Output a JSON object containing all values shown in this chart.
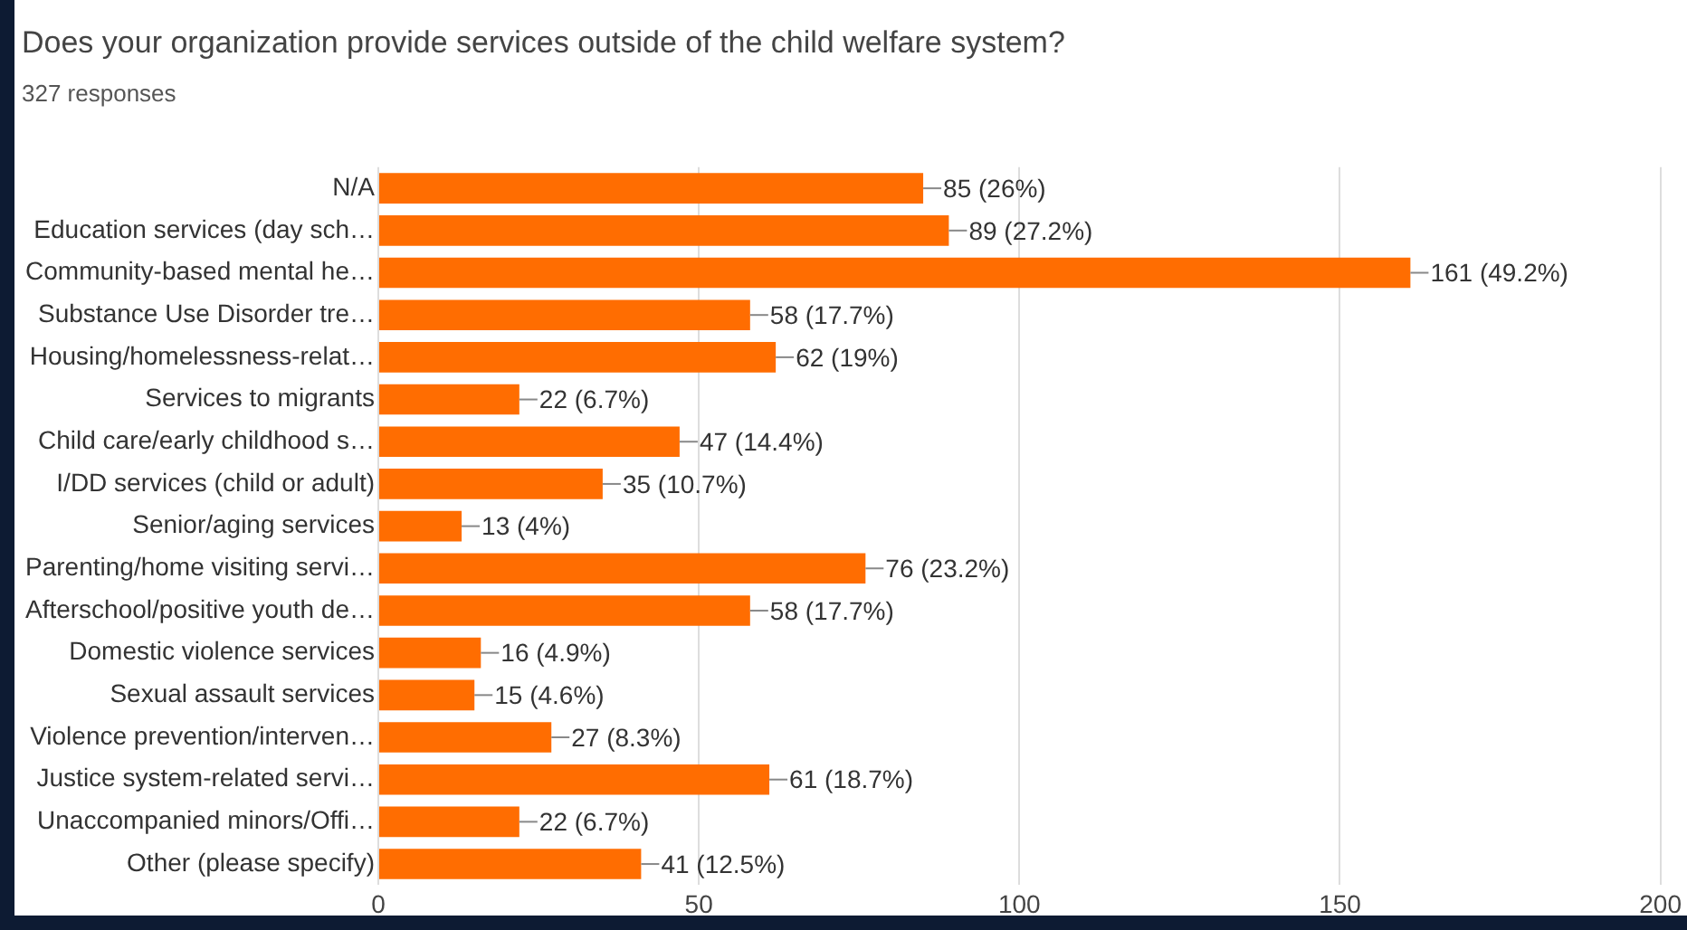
{
  "chart_data": {
    "type": "bar",
    "orientation": "horizontal",
    "title": "Does your organization provide services outside of the child welfare system?",
    "subtitle": "327 responses",
    "categories": [
      "N/A",
      "Education services (day sch…",
      "Community-based mental he…",
      "Substance Use Disorder tre…",
      "Housing/homelessness-relat…",
      "Services to migrants",
      "Child care/early childhood s…",
      "I/DD services (child or adult)",
      "Senior/aging services",
      "Parenting/home visiting servi…",
      "Afterschool/positive youth de…",
      "Domestic violence services",
      "Sexual assault services",
      "Violence prevention/interven…",
      "Justice system-related servi…",
      "Unaccompanied minors/Offi…",
      "Other (please specify)"
    ],
    "values": [
      85,
      89,
      161,
      58,
      62,
      22,
      47,
      35,
      13,
      76,
      58,
      16,
      15,
      27,
      61,
      22,
      41
    ],
    "value_labels": [
      "85 (26%)",
      "89 (27.2%)",
      "161 (49.2%)",
      "58 (17.7%)",
      "62 (19%)",
      "22 (6.7%)",
      "47 (14.4%)",
      "35 (10.7%)",
      "13 (4%)",
      "76 (23.2%)",
      "58 (17.7%)",
      "16 (4.9%)",
      "15 (4.6%)",
      "27 (8.3%)",
      "61 (18.7%)",
      "22 (6.7%)",
      "41 (12.5%)"
    ],
    "color": "#ff6d01",
    "xlim": [
      0,
      200
    ],
    "xticks": [
      0,
      50,
      100,
      150,
      200
    ],
    "grid": "x",
    "legend": false
  }
}
